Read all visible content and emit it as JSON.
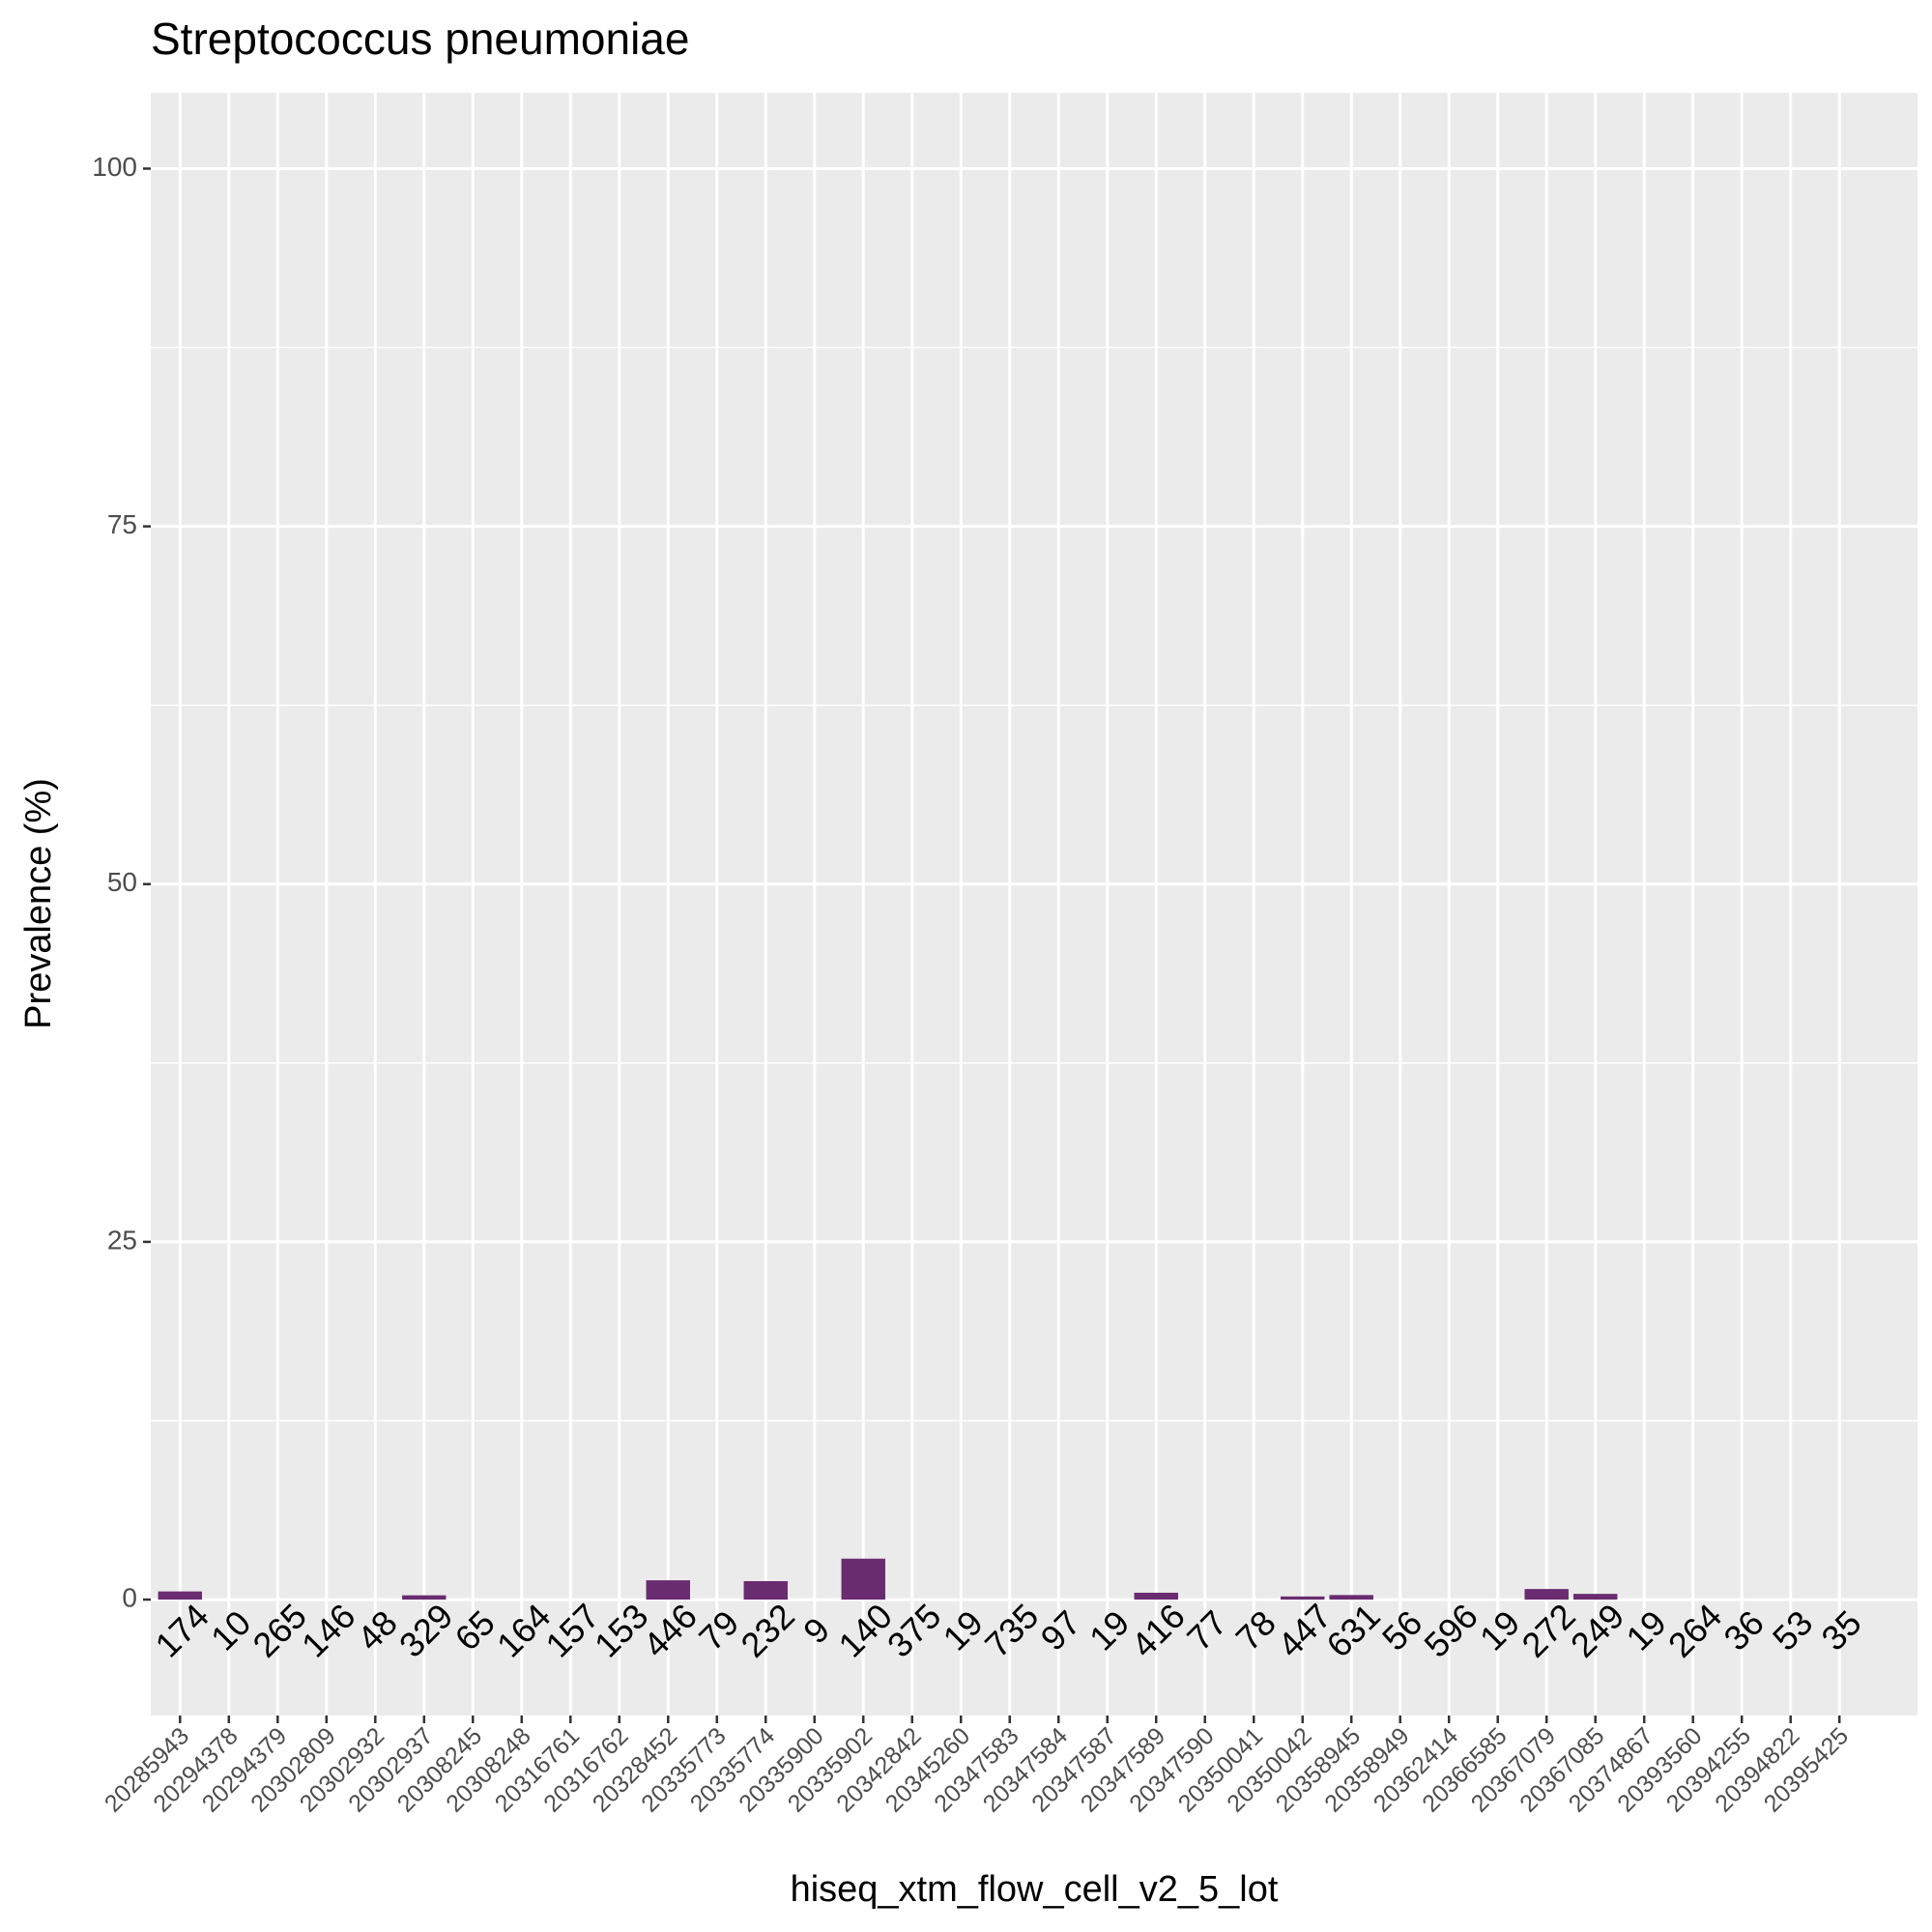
{
  "chart_data": {
    "type": "bar",
    "title": "Streptococcus pneumoniae",
    "x_label": "hiseq_xtm_flow_cell_v2_5_lot",
    "y_label": "Prevalence (%)",
    "categories": [
      "20285943",
      "20294378",
      "20294379",
      "20302809",
      "20302932",
      "20302937",
      "20308245",
      "20308248",
      "20316761",
      "20316762",
      "20328452",
      "20335773",
      "20335774",
      "20335900",
      "20335902",
      "20342842",
      "20345260",
      "20347583",
      "20347584",
      "20347587",
      "20347589",
      "20347590",
      "20350041",
      "20350042",
      "20358945",
      "20358949",
      "20362414",
      "20366585",
      "20367079",
      "20367085",
      "20374867",
      "20393560",
      "20394255",
      "20394822",
      "20395425"
    ],
    "values": [
      0.57,
      0,
      0,
      0,
      0,
      0.3,
      0,
      0,
      0,
      0,
      1.35,
      0,
      1.29,
      0,
      2.86,
      0,
      0,
      0,
      0,
      0,
      0.48,
      0,
      0,
      0.22,
      0.32,
      0,
      0,
      0,
      0.74,
      0.4,
      0,
      0,
      0,
      0,
      0
    ],
    "sample_sizes": [
      174,
      10,
      265,
      146,
      48,
      329,
      65,
      164,
      157,
      153,
      446,
      79,
      232,
      9,
      140,
      375,
      19,
      735,
      97,
      19,
      416,
      77,
      78,
      447,
      631,
      56,
      596,
      19,
      272,
      249,
      19,
      264,
      36,
      53,
      35
    ],
    "color": "#6a2c70",
    "ylim": [
      -8.1,
      105.3
    ],
    "yticks": [
      0,
      25,
      50,
      75,
      100
    ],
    "grid": true
  }
}
